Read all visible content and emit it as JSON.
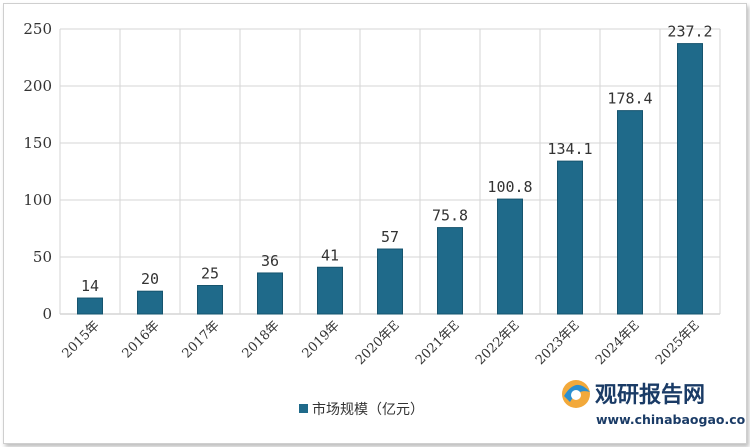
{
  "chart_data": {
    "type": "bar",
    "title": "",
    "xlabel": "",
    "ylabel": "",
    "ylim": [
      0,
      250
    ],
    "yticks": [
      0,
      50,
      100,
      150,
      200,
      250
    ],
    "grid": true,
    "legend_position": "bottom-center",
    "categories": [
      "2015年",
      "2016年",
      "2017年",
      "2018年",
      "2019年",
      "2020年E",
      "2021年E",
      "2022年E",
      "2023年E",
      "2024年E",
      "2025年E"
    ],
    "series": [
      {
        "name": "市场规模（亿元）",
        "values": [
          14,
          20,
          25,
          36,
          41,
          57,
          75.8,
          100.8,
          134.1,
          178.4,
          237.2
        ],
        "labels": [
          "14",
          "20",
          "25",
          "36",
          "41",
          "57",
          "75.8",
          "100.8",
          "134.1",
          "178.4",
          "237.2"
        ]
      }
    ],
    "colors": {
      "bar": "#1f6a8a",
      "bar_edge": "#16546e",
      "grid": "#d6d6d6",
      "axis": "#bfbfbf"
    }
  },
  "watermark": {
    "brand": "观研报告网",
    "url": "www.chinabaogao.com",
    "icon": "chinabaogao-logo-icon"
  }
}
